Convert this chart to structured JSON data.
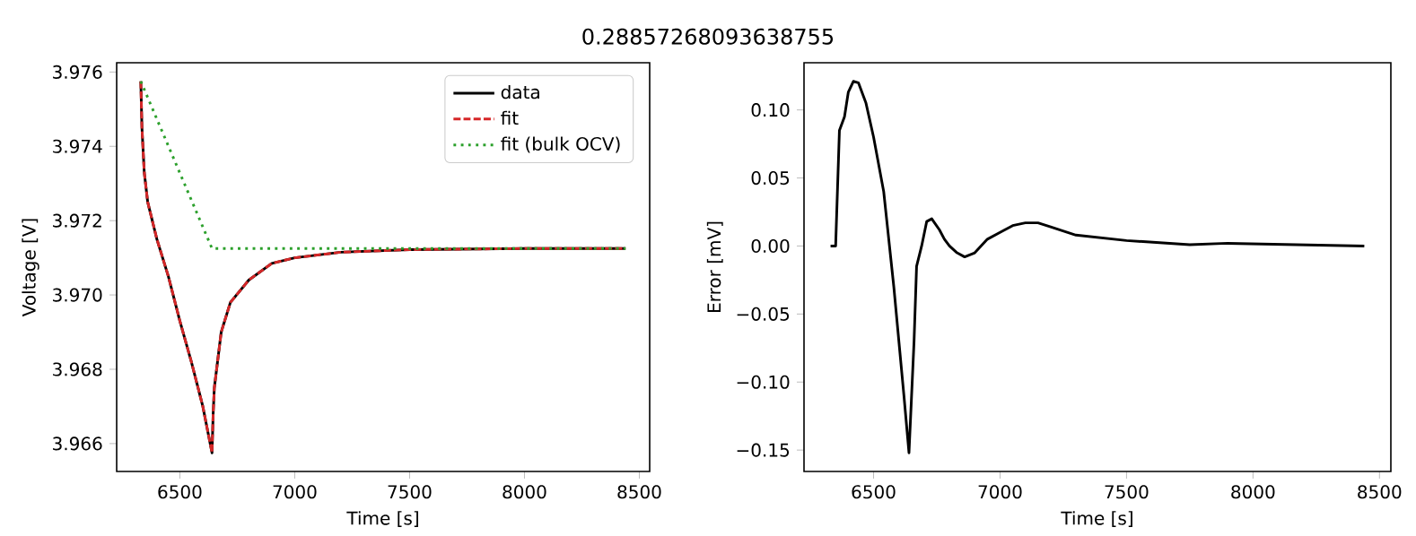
{
  "chart_data": [
    {
      "type": "line",
      "title": "0.28857268093638755",
      "xlabel": "Time [s]",
      "ylabel": "Voltage [V]",
      "xlim": [
        6225,
        8545
      ],
      "ylim": [
        3.96525,
        3.97625
      ],
      "xticks": [
        6500,
        7000,
        7500,
        8000,
        8500
      ],
      "yticks": [
        3.966,
        3.968,
        {
          "value": 3.97,
          "label": "3.970"
        },
        3.972,
        3.974,
        3.976
      ],
      "legend": "top right",
      "series": [
        {
          "name": "data",
          "color": "#000000",
          "line_style": "solid",
          "x": [
            6330,
            6335,
            6345,
            6360,
            6400,
            6450,
            6500,
            6550,
            6600,
            6640,
            6645,
            6650,
            6680,
            6720,
            6800,
            6900,
            7000,
            7200,
            7500,
            8000,
            8440
          ],
          "values": [
            3.97575,
            3.9745,
            3.9733,
            3.9725,
            3.9715,
            3.9705,
            3.9693,
            3.9682,
            3.967,
            3.96575,
            3.9668,
            3.9675,
            3.969,
            3.9698,
            3.9704,
            3.97085,
            3.971,
            3.97115,
            3.97122,
            3.97125,
            3.97125
          ]
        },
        {
          "name": "fit",
          "color": "#d62728",
          "line_style": "dashed",
          "x": [
            6330,
            6335,
            6345,
            6360,
            6400,
            6450,
            6500,
            6550,
            6600,
            6640,
            6645,
            6650,
            6680,
            6720,
            6800,
            6900,
            7000,
            7200,
            7500,
            8000,
            8440
          ],
          "values": [
            3.97575,
            3.9745,
            3.9733,
            3.9725,
            3.9715,
            3.9705,
            3.9693,
            3.9682,
            3.967,
            3.96575,
            3.9668,
            3.9675,
            3.969,
            3.9698,
            3.9704,
            3.97085,
            3.971,
            3.97115,
            3.97122,
            3.97125,
            3.97125
          ]
        },
        {
          "name": "fit (bulk OCV)",
          "color": "#2ca02c",
          "line_style": "dotted",
          "x": [
            6330,
            6640,
            8440
          ],
          "values": [
            3.97575,
            3.97125,
            3.97125
          ]
        }
      ]
    },
    {
      "type": "line",
      "xlabel": "Time [s]",
      "ylabel": "Error [mV]",
      "xlim": [
        6225,
        8545
      ],
      "ylim": [
        -0.1657,
        0.1347
      ],
      "xticks": [
        6500,
        7000,
        7500,
        8000,
        8500
      ],
      "yticks": [
        {
          "value": -0.15,
          "label": "−0.15"
        },
        {
          "value": -0.1,
          "label": "−0.10"
        },
        {
          "value": -0.05,
          "label": "−0.05"
        },
        {
          "value": 0,
          "label": "0.00"
        },
        {
          "value": 0.05,
          "label": "0.05"
        },
        {
          "value": 0.1,
          "label": "0.10"
        }
      ],
      "series": [
        {
          "color": "#000000",
          "line_style": "solid",
          "x": [
            6330,
            6350,
            6365,
            6385,
            6400,
            6420,
            6440,
            6470,
            6500,
            6540,
            6580,
            6620,
            6640,
            6660,
            6670,
            6690,
            6710,
            6730,
            6760,
            6780,
            6800,
            6830,
            6860,
            6900,
            6950,
            7000,
            7050,
            7100,
            7150,
            7200,
            7300,
            7500,
            7750,
            7900,
            8440
          ],
          "values": [
            0,
            0,
            0.085,
            0.095,
            0.113,
            0.121,
            0.12,
            0.105,
            0.08,
            0.04,
            -0.03,
            -0.11,
            -0.152,
            -0.07,
            -0.015,
            0.0,
            0.018,
            0.02,
            0.012,
            0.005,
            0.0,
            -0.005,
            -0.008,
            -0.005,
            0.005,
            0.01,
            0.015,
            0.017,
            0.017,
            0.014,
            0.008,
            0.004,
            0.001,
            0.002,
            0.0
          ]
        }
      ]
    }
  ]
}
